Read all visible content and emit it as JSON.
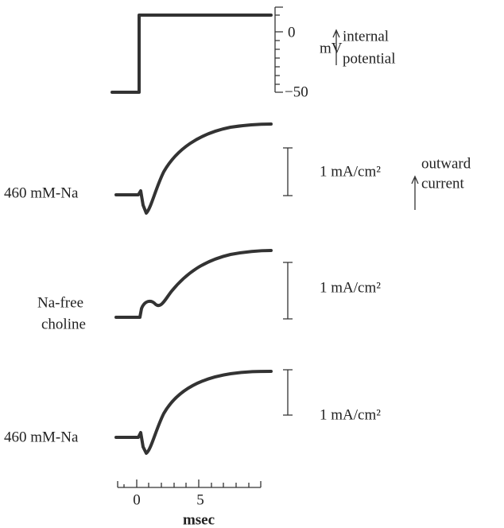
{
  "voltage_panel": {
    "ticks": [
      "0",
      "−50"
    ],
    "unit": "mV",
    "arrow_label": [
      "internal",
      "potential"
    ]
  },
  "current_panels": [
    {
      "label": [
        "460 mM-Na"
      ],
      "scale": "1 mA/cm²",
      "arrow_label": [
        "outward",
        "current"
      ]
    },
    {
      "label": [
        "Na-free",
        "choline"
      ],
      "scale": "1 mA/cm²"
    },
    {
      "label": [
        "460 mM-Na"
      ],
      "scale": "1 mA/cm²"
    }
  ],
  "time_axis": {
    "ticks": [
      "0",
      "5"
    ],
    "label": "msec"
  }
}
